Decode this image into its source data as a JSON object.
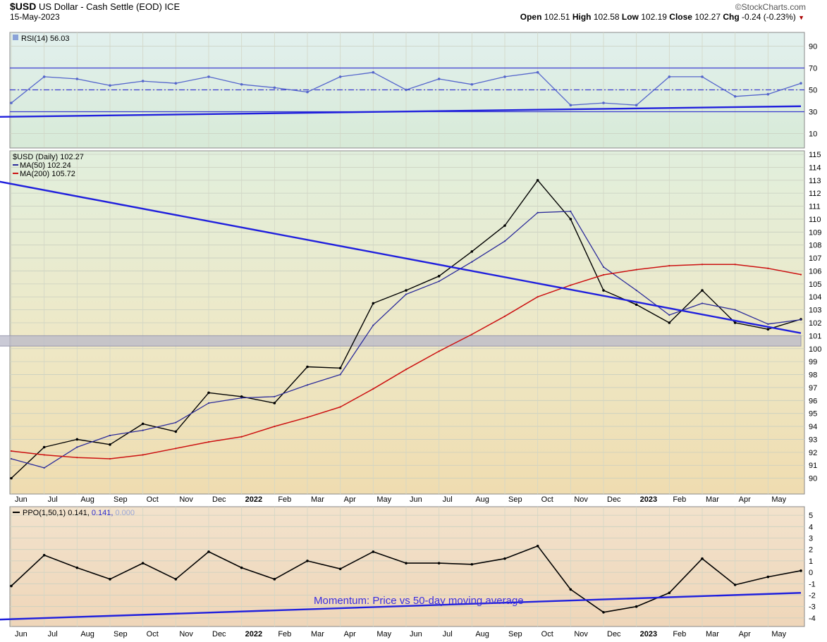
{
  "header": {
    "symbol": "$USD",
    "name": "US Dollar - Cash Settle (EOD)",
    "exchange": "ICE",
    "date": "15-May-2023",
    "brand": "©StockCharts.com",
    "open_label": "Open",
    "open": "102.51",
    "high_label": "High",
    "high": "102.58",
    "low_label": "Low",
    "low": "102.19",
    "close_label": "Close",
    "close": "102.27",
    "chg_label": "Chg",
    "chg": "-0.24 (-0.23%)"
  },
  "colors": {
    "price": "#000000",
    "ma50": "#2b2b9a",
    "ma200": "#cc1111",
    "rsi": "#5566cc",
    "trend": "#2020dd",
    "support_band": "#b8b8c8"
  },
  "chart_data": [
    {
      "type": "line",
      "panel": "rsi",
      "legend": "RSI(14) 56.03",
      "ylim": [
        0,
        100
      ],
      "y_ticks": [
        10,
        30,
        50,
        70,
        90
      ],
      "levels": [
        30,
        50,
        70
      ],
      "x": [
        "Jun 2021",
        "Jul",
        "Aug",
        "Sep",
        "Oct",
        "Nov",
        "Dec",
        "2022",
        "Feb",
        "Mar",
        "Apr",
        "May",
        "Jun",
        "Jul",
        "Aug",
        "Sep",
        "Oct",
        "Nov",
        "Dec",
        "2023",
        "Feb",
        "Mar",
        "Apr",
        "May",
        "15-May-2023"
      ],
      "series": [
        {
          "name": "RSI(14)",
          "values": [
            38,
            62,
            60,
            54,
            58,
            56,
            62,
            55,
            52,
            48,
            62,
            66,
            50,
            60,
            55,
            62,
            66,
            36,
            38,
            36,
            62,
            62,
            44,
            46,
            56.03
          ]
        }
      ],
      "trendline": {
        "from": [
          "Dec 2022",
          25
        ],
        "to": [
          "15-May-2023",
          35
        ]
      }
    },
    {
      "type": "line",
      "panel": "price",
      "legend": [
        "$USD (Daily) 102.27",
        "MA(50) 102.24",
        "MA(200) 105.72"
      ],
      "ylim": [
        89,
        115
      ],
      "y_ticks": [
        90,
        91,
        92,
        93,
        94,
        95,
        96,
        97,
        98,
        99,
        100,
        101,
        102,
        103,
        104,
        105,
        106,
        107,
        108,
        109,
        110,
        111,
        112,
        113,
        114,
        115
      ],
      "x_tick_labels": [
        "Jun",
        "Jul",
        "Aug",
        "Sep",
        "Oct",
        "Nov",
        "Dec",
        "2022",
        "Feb",
        "Mar",
        "Apr",
        "May",
        "Jun",
        "Jul",
        "Aug",
        "Sep",
        "Oct",
        "Nov",
        "Dec",
        "2023",
        "Feb",
        "Mar",
        "Apr",
        "May"
      ],
      "x": [
        "Jun 2021",
        "Jul",
        "Aug",
        "Sep",
        "Oct",
        "Nov",
        "Dec",
        "2022",
        "Feb",
        "Mar",
        "Apr",
        "May",
        "Jun",
        "Jul",
        "Aug",
        "Sep",
        "Oct",
        "Nov",
        "Dec",
        "2023",
        "Feb",
        "Mar",
        "Apr",
        "May",
        "15-May-2023"
      ],
      "series": [
        {
          "name": "$USD (Daily)",
          "values": [
            90.0,
            92.4,
            93.0,
            92.6,
            94.2,
            93.6,
            96.6,
            96.3,
            95.8,
            98.6,
            98.5,
            103.5,
            104.5,
            105.6,
            107.5,
            109.5,
            113.0,
            110.0,
            104.5,
            103.4,
            102.0,
            104.5,
            102.0,
            101.5,
            102.27
          ]
        },
        {
          "name": "MA(50)",
          "values": [
            91.5,
            90.8,
            92.4,
            93.3,
            93.7,
            94.3,
            95.8,
            96.2,
            96.3,
            97.2,
            98.0,
            101.8,
            104.2,
            105.2,
            106.7,
            108.3,
            110.5,
            110.6,
            106.3,
            104.5,
            102.6,
            103.5,
            103.0,
            101.9,
            102.24
          ]
        },
        {
          "name": "MA(200)",
          "values": [
            92.1,
            91.8,
            91.6,
            91.5,
            91.8,
            92.3,
            92.8,
            93.2,
            94.0,
            94.7,
            95.5,
            96.9,
            98.4,
            99.8,
            101.1,
            102.5,
            104.0,
            104.9,
            105.7,
            106.1,
            106.4,
            106.5,
            106.5,
            106.2,
            105.72
          ]
        }
      ],
      "trendline": {
        "from": [
          "Nov 2022",
          113.2
        ],
        "to": [
          "15-May-2023",
          101.2
        ]
      },
      "support_zone": {
        "from": "Apr 2022",
        "to": "15-May-2023",
        "low": 100.2,
        "high": 101.0
      }
    },
    {
      "type": "line",
      "panel": "ppo",
      "legend_parts": [
        "PPO(1,50,1) 0.141, ",
        "0.141, ",
        "0.000"
      ],
      "ylim": [
        -4.5,
        5.5
      ],
      "y_ticks": [
        -4,
        -3,
        -2,
        -1,
        0,
        1,
        2,
        3,
        4,
        5
      ],
      "x": [
        "Jun 2021",
        "Jul",
        "Aug",
        "Sep",
        "Oct",
        "Nov",
        "Dec",
        "2022",
        "Feb",
        "Mar",
        "Apr",
        "May",
        "Jun",
        "Jul",
        "Aug",
        "Sep",
        "Oct",
        "Nov",
        "Dec",
        "2023",
        "Feb",
        "Mar",
        "Apr",
        "May",
        "15-May-2023"
      ],
      "series": [
        {
          "name": "PPO(1,50,1)",
          "values": [
            -1.2,
            1.5,
            0.4,
            -0.6,
            0.8,
            -0.6,
            1.8,
            0.4,
            -0.6,
            1.0,
            0.3,
            1.8,
            0.8,
            0.8,
            0.7,
            1.2,
            2.3,
            -1.5,
            -3.5,
            -3.0,
            -1.8,
            1.2,
            -1.1,
            -0.4,
            0.141
          ]
        }
      ],
      "trendline": {
        "from": [
          "Nov 2022",
          -4.2
        ],
        "to": [
          "15-May-2023",
          -1.8
        ]
      },
      "annotation": "Momentum: Price vs 50-day moving average"
    }
  ]
}
